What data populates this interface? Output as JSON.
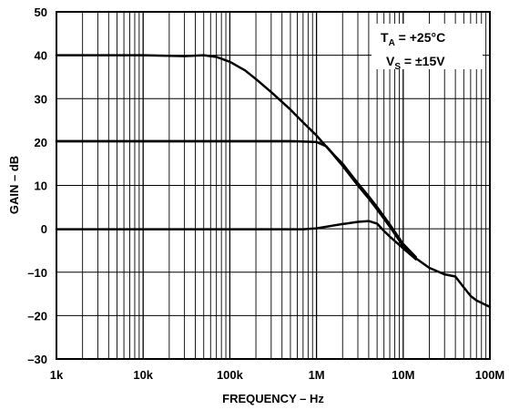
{
  "chart_data": {
    "type": "line",
    "title": "",
    "xlabel": "FREQUENCY – Hz",
    "ylabel": "GAIN – dB",
    "x_scale": "log",
    "xlim": [
      1000,
      100000000
    ],
    "ylim": [
      -30,
      50
    ],
    "grid": true,
    "x_ticks": [
      {
        "value": 1000,
        "label": "1k"
      },
      {
        "value": 10000,
        "label": "10k"
      },
      {
        "value": 100000,
        "label": "100k"
      },
      {
        "value": 1000000,
        "label": "1M"
      },
      {
        "value": 10000000,
        "label": "10M"
      },
      {
        "value": 100000000,
        "label": "100M"
      }
    ],
    "y_ticks": [
      {
        "value": 50,
        "label": "50"
      },
      {
        "value": 40,
        "label": "40"
      },
      {
        "value": 30,
        "label": "30"
      },
      {
        "value": 20,
        "label": "20"
      },
      {
        "value": 10,
        "label": "10"
      },
      {
        "value": 0,
        "label": "0"
      },
      {
        "value": -10,
        "label": "–10"
      },
      {
        "value": -20,
        "label": "–20"
      },
      {
        "value": -30,
        "label": "–30"
      }
    ],
    "annotations": [
      {
        "main": "T",
        "sub": "A",
        "rest": " = +25°C"
      },
      {
        "main": "V",
        "sub": "S",
        "rest": " = ±15V"
      }
    ],
    "series": [
      {
        "points": [
          [
            1000,
            40
          ],
          [
            10000,
            40
          ],
          [
            30000,
            39.8
          ],
          [
            50000,
            40
          ],
          [
            70000,
            39.6
          ],
          [
            100000,
            38.5
          ],
          [
            150000,
            36.5
          ],
          [
            200000,
            34.5
          ],
          [
            300000,
            31.5
          ],
          [
            500000,
            27.5
          ],
          [
            700000,
            24.5
          ],
          [
            1000000,
            21.5
          ],
          [
            1500000,
            17.5
          ],
          [
            2000000,
            14.5
          ],
          [
            3000000,
            10
          ],
          [
            4000000,
            7
          ],
          [
            5000000,
            4.5
          ],
          [
            7000000,
            0.5
          ],
          [
            10000000,
            -4
          ],
          [
            14000000,
            -6.8
          ],
          [
            20000000,
            -9
          ],
          [
            30000000,
            -10.5
          ],
          [
            40000000,
            -11
          ],
          [
            50000000,
            -13.5
          ],
          [
            60000000,
            -15.5
          ],
          [
            70000000,
            -16.5
          ],
          [
            100000000,
            -18
          ]
        ]
      },
      {
        "points": [
          [
            1000,
            20.2
          ],
          [
            100000,
            20.2
          ],
          [
            500000,
            20.2
          ],
          [
            1000000,
            20
          ],
          [
            1300000,
            19
          ],
          [
            1600000,
            17
          ],
          [
            2000000,
            15
          ],
          [
            3000000,
            10.5
          ],
          [
            4000000,
            7.5
          ],
          [
            5000000,
            5
          ],
          [
            7000000,
            1
          ],
          [
            10000000,
            -3.5
          ],
          [
            14000000,
            -6.5
          ]
        ]
      },
      {
        "points": [
          [
            1000,
            -0.1
          ],
          [
            100000,
            -0.1
          ],
          [
            700000,
            -0.1
          ],
          [
            1000000,
            0.1
          ],
          [
            1500000,
            0.7
          ],
          [
            2000000,
            1.1
          ],
          [
            3000000,
            1.6
          ],
          [
            4000000,
            1.8
          ],
          [
            5000000,
            1.2
          ],
          [
            6000000,
            -0.5
          ],
          [
            7000000,
            -1.8
          ],
          [
            10000000,
            -4.5
          ],
          [
            14000000,
            -7
          ]
        ]
      }
    ]
  }
}
